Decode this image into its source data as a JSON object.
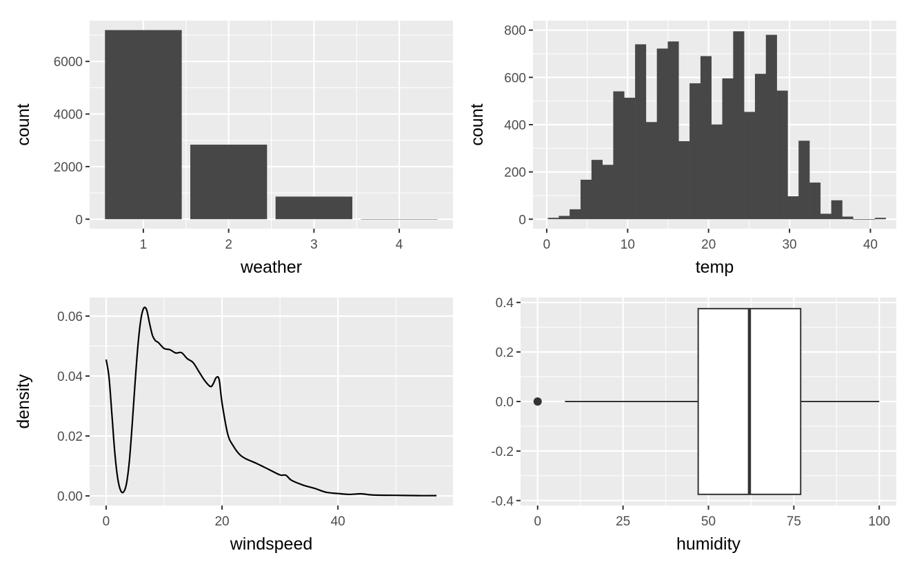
{
  "colors": {
    "panel_bg": "#ebebeb",
    "grid": "#ffffff",
    "bar_fill": "#474747",
    "tick": "#333333",
    "tick_text": "#4d4d4d",
    "line": "#000000",
    "box_fill": "#ffffff",
    "box_stroke": "#333333"
  },
  "chart_data": [
    {
      "type": "bar",
      "xlabel": "weather",
      "ylabel": "count",
      "categories": [
        "1",
        "2",
        "3",
        "4"
      ],
      "values": [
        7192,
        2834,
        859,
        1
      ],
      "xlim": [
        0.37,
        4.63
      ],
      "ylim": [
        -360,
        7550
      ],
      "x_ticks": [
        1,
        2,
        3,
        4
      ],
      "y_ticks": [
        0,
        2000,
        4000,
        6000
      ],
      "x_tick_labels": [
        "1",
        "2",
        "3",
        "4"
      ],
      "y_tick_labels": [
        "0",
        "2000",
        "4000",
        "6000"
      ],
      "grid": true
    },
    {
      "type": "bar",
      "subtype": "histogram",
      "xlabel": "temp",
      "ylabel": "count",
      "bin_edges": [
        0.14,
        1.49,
        2.83,
        4.18,
        5.53,
        6.88,
        8.22,
        9.57,
        10.92,
        12.26,
        13.61,
        14.96,
        16.3,
        17.65,
        19.0,
        20.34,
        21.69,
        23.04,
        24.38,
        25.73,
        27.08,
        28.43,
        29.77,
        31.12,
        32.47,
        33.81,
        35.16,
        36.51,
        37.85,
        39.2,
        40.55,
        41.89
      ],
      "values": [
        6,
        14,
        42,
        167,
        251,
        230,
        541,
        514,
        740,
        411,
        722,
        752,
        330,
        575,
        690,
        401,
        596,
        795,
        454,
        615,
        780,
        544,
        97,
        332,
        155,
        23,
        80,
        11,
        0,
        0,
        6
      ],
      "xlim": [
        -1.7,
        43.2
      ],
      "ylim": [
        -40,
        840
      ],
      "x_ticks": [
        0,
        10,
        20,
        30,
        40
      ],
      "y_ticks": [
        0,
        200,
        400,
        600,
        800
      ],
      "x_tick_labels": [
        "0",
        "10",
        "20",
        "30",
        "40"
      ],
      "y_tick_labels": [
        "0",
        "200",
        "400",
        "600",
        "800"
      ],
      "grid": true
    },
    {
      "type": "line",
      "subtype": "density",
      "xlabel": "windspeed",
      "ylabel": "density",
      "x": [
        0,
        0.5,
        1,
        1.5,
        2,
        2.5,
        3,
        3.5,
        4,
        4.5,
        5,
        5.5,
        6,
        6.5,
        7,
        7.5,
        8,
        8.5,
        9,
        10,
        11,
        12,
        13,
        14,
        15,
        16,
        17,
        18,
        18.5,
        19,
        19.5,
        20,
        21,
        22,
        23,
        24,
        26,
        28,
        30,
        31,
        32,
        34,
        36,
        38,
        40,
        42,
        44,
        46,
        50,
        54,
        57
      ],
      "y": [
        0.0455,
        0.0395,
        0.027,
        0.0143,
        0.0058,
        0.0018,
        0.0013,
        0.004,
        0.0115,
        0.024,
        0.038,
        0.0505,
        0.059,
        0.0627,
        0.062,
        0.0575,
        0.0535,
        0.0518,
        0.0512,
        0.0492,
        0.0488,
        0.0477,
        0.0478,
        0.0458,
        0.0445,
        0.0415,
        0.0385,
        0.0365,
        0.0375,
        0.0395,
        0.0388,
        0.031,
        0.0205,
        0.0165,
        0.0139,
        0.0125,
        0.0108,
        0.0089,
        0.007,
        0.0069,
        0.0052,
        0.0036,
        0.0025,
        0.0012,
        0.0008,
        0.0005,
        0.0007,
        0.0003,
        0.0002,
        0.0001,
        0.0001
      ],
      "xlim": [
        -2.85,
        59.85
      ],
      "ylim": [
        -0.0032,
        0.0662
      ],
      "x_ticks": [
        0,
        20,
        40
      ],
      "y_ticks": [
        0,
        0.02,
        0.04,
        0.06
      ],
      "x_tick_labels": [
        "0",
        "20",
        "40"
      ],
      "y_tick_labels": [
        "0.00",
        "0.02",
        "0.04",
        "0.06"
      ],
      "grid": true
    },
    {
      "type": "box",
      "xlabel": "humidity",
      "ylabel": "",
      "min": 8,
      "q1": 47,
      "median": 62,
      "q3": 77,
      "max": 100,
      "outliers": [
        0
      ],
      "box_y_range": [
        -0.375,
        0.375
      ],
      "xlim": [
        -5,
        105
      ],
      "ylim": [
        -0.42,
        0.42
      ],
      "x_ticks": [
        0,
        25,
        50,
        75,
        100
      ],
      "y_ticks": [
        -0.4,
        -0.2,
        0,
        0.2,
        0.4
      ],
      "x_tick_labels": [
        "0",
        "25",
        "50",
        "75",
        "100"
      ],
      "y_tick_labels": [
        "-0.4",
        "-0.2",
        "0.0",
        "0.2",
        "0.4"
      ],
      "grid": true
    }
  ]
}
